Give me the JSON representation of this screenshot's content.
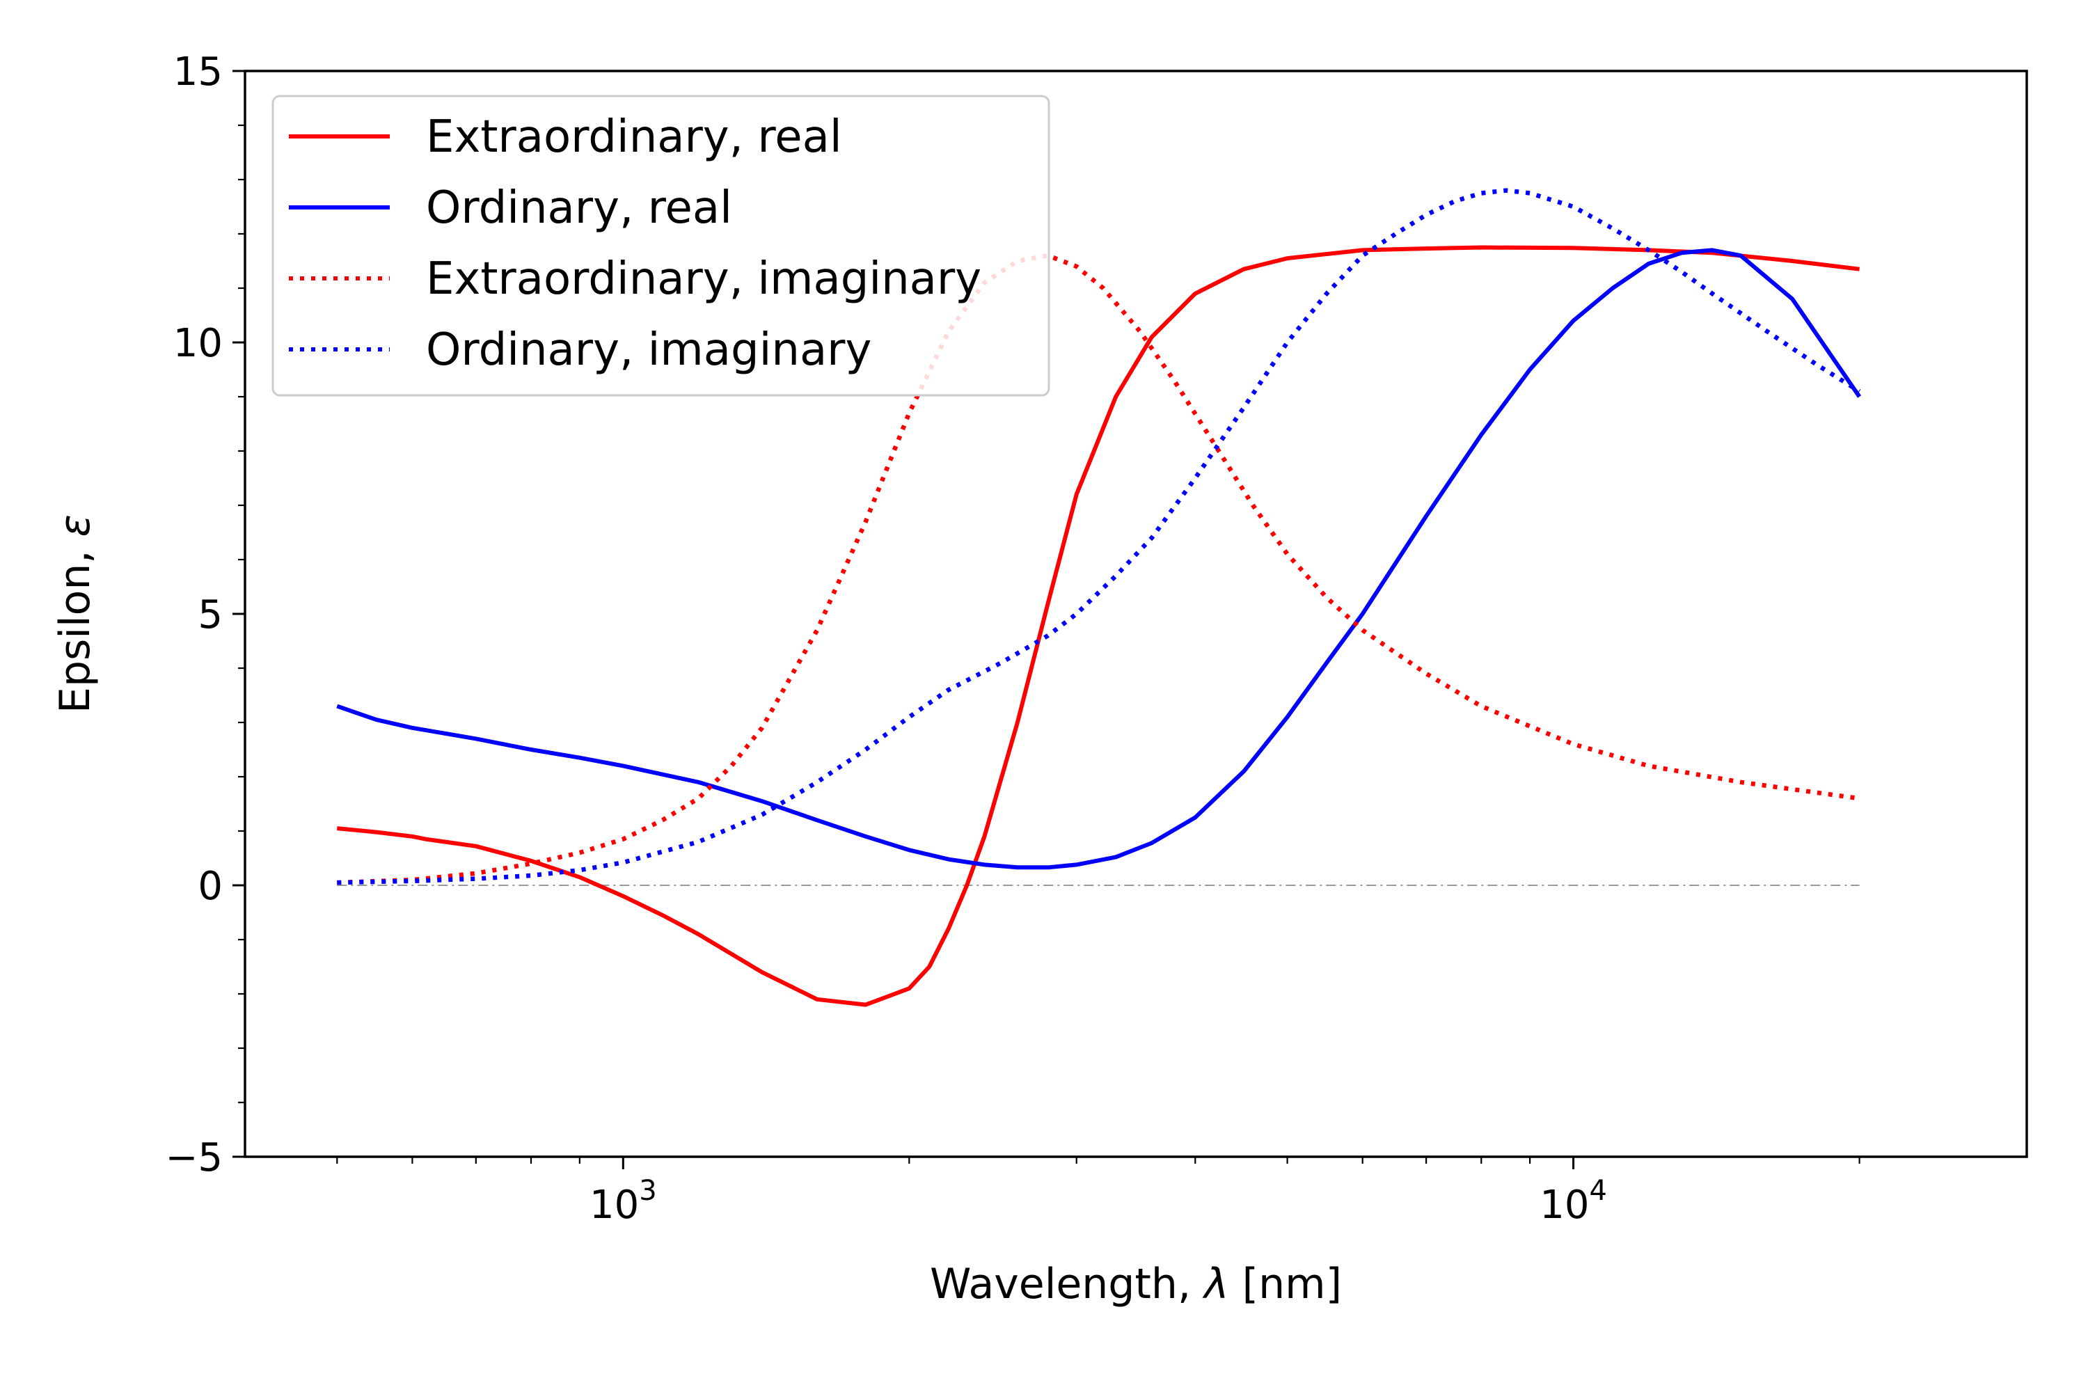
{
  "chart_data": {
    "type": "line",
    "xlabel": "Wavelength, λ [nm]",
    "xlabel_text": "Wavelength, ",
    "xlabel_symbol": "λ",
    "xlabel_unit": " [nm]",
    "ylabel": "Epsilon, ε",
    "ylabel_text": "Epsilon, ",
    "ylabel_symbol": "ε",
    "xscale": "log",
    "xlim": [
      400,
      30000
    ],
    "ylim": [
      -5,
      15
    ],
    "xticks": [
      {
        "value": 1000,
        "base": "10",
        "exp": "3"
      },
      {
        "value": 10000,
        "base": "10",
        "exp": "4"
      }
    ],
    "yticks": [
      {
        "value": -5,
        "label": "−5"
      },
      {
        "value": 0,
        "label": "0"
      },
      {
        "value": 5,
        "label": "5"
      },
      {
        "value": 10,
        "label": "10"
      },
      {
        "value": 15,
        "label": "15"
      }
    ],
    "grid": false,
    "legend_position": "top-left",
    "reference_line": {
      "y": 0,
      "x_range": [
        500,
        20000
      ],
      "color": "#999999",
      "style": "dash-dot"
    },
    "series": [
      {
        "name": "Extraordinary, real",
        "color": "#ff0000",
        "style": "solid",
        "x": [
          500,
          550,
          600,
          620,
          650,
          700,
          800,
          900,
          1000,
          1100,
          1200,
          1400,
          1600,
          1800,
          2000,
          2100,
          2200,
          2300,
          2400,
          2600,
          2800,
          3000,
          3300,
          3600,
          4000,
          4500,
          5000,
          6000,
          7000,
          8000,
          10000,
          12000,
          14000,
          17000,
          20000
        ],
        "y": [
          1.05,
          0.98,
          0.9,
          0.85,
          0.8,
          0.72,
          0.45,
          0.15,
          -0.2,
          -0.55,
          -0.9,
          -1.6,
          -2.1,
          -2.2,
          -1.9,
          -1.5,
          -0.8,
          0.0,
          0.9,
          3.0,
          5.2,
          7.2,
          9.0,
          10.1,
          10.9,
          11.35,
          11.55,
          11.7,
          11.73,
          11.75,
          11.74,
          11.7,
          11.65,
          11.5,
          11.35
        ]
      },
      {
        "name": "Ordinary, real",
        "color": "#0000ff",
        "style": "solid",
        "x": [
          500,
          550,
          600,
          700,
          800,
          900,
          1000,
          1200,
          1400,
          1600,
          1800,
          2000,
          2200,
          2400,
          2600,
          2800,
          3000,
          3300,
          3600,
          4000,
          4500,
          5000,
          5500,
          6000,
          7000,
          8000,
          9000,
          10000,
          11000,
          12000,
          13000,
          14000,
          15000,
          17000,
          20000
        ],
        "y": [
          3.3,
          3.05,
          2.9,
          2.7,
          2.5,
          2.35,
          2.2,
          1.9,
          1.55,
          1.2,
          0.9,
          0.65,
          0.48,
          0.38,
          0.33,
          0.33,
          0.38,
          0.52,
          0.78,
          1.25,
          2.1,
          3.1,
          4.1,
          5.0,
          6.8,
          8.3,
          9.5,
          10.4,
          11.0,
          11.45,
          11.65,
          11.7,
          11.6,
          10.8,
          9.0
        ]
      },
      {
        "name": "Extraordinary, imaginary",
        "color": "#ff0000",
        "style": "dotted",
        "x": [
          500,
          600,
          700,
          800,
          900,
          1000,
          1100,
          1200,
          1300,
          1400,
          1600,
          1800,
          2000,
          2200,
          2400,
          2600,
          2800,
          3000,
          3200,
          3500,
          3800,
          4200,
          4600,
          5000,
          5500,
          6000,
          7000,
          8000,
          10000,
          12000,
          15000,
          20000
        ],
        "y": [
          0.05,
          0.1,
          0.22,
          0.4,
          0.6,
          0.85,
          1.2,
          1.6,
          2.2,
          2.9,
          4.7,
          6.7,
          8.7,
          10.2,
          11.1,
          11.5,
          11.6,
          11.4,
          11.0,
          10.2,
          9.3,
          8.1,
          7.0,
          6.1,
          5.3,
          4.7,
          3.9,
          3.3,
          2.6,
          2.2,
          1.9,
          1.6
        ]
      },
      {
        "name": "Ordinary, imaginary",
        "color": "#0000ff",
        "style": "dotted",
        "x": [
          500,
          600,
          700,
          800,
          900,
          1000,
          1200,
          1400,
          1600,
          1800,
          2000,
          2200,
          2500,
          2800,
          3000,
          3300,
          3600,
          4000,
          4500,
          5000,
          5500,
          6000,
          6500,
          7000,
          7500,
          8000,
          8500,
          9000,
          10000,
          11000,
          12000,
          13000,
          14000,
          16000,
          18000,
          20000
        ],
        "y": [
          0.05,
          0.08,
          0.12,
          0.18,
          0.28,
          0.42,
          0.8,
          1.3,
          1.9,
          2.5,
          3.1,
          3.6,
          4.1,
          4.6,
          5.0,
          5.7,
          6.4,
          7.5,
          8.8,
          10.0,
          10.9,
          11.6,
          12.0,
          12.35,
          12.6,
          12.75,
          12.8,
          12.75,
          12.5,
          12.1,
          11.7,
          11.3,
          10.9,
          10.2,
          9.6,
          9.1
        ]
      }
    ]
  }
}
